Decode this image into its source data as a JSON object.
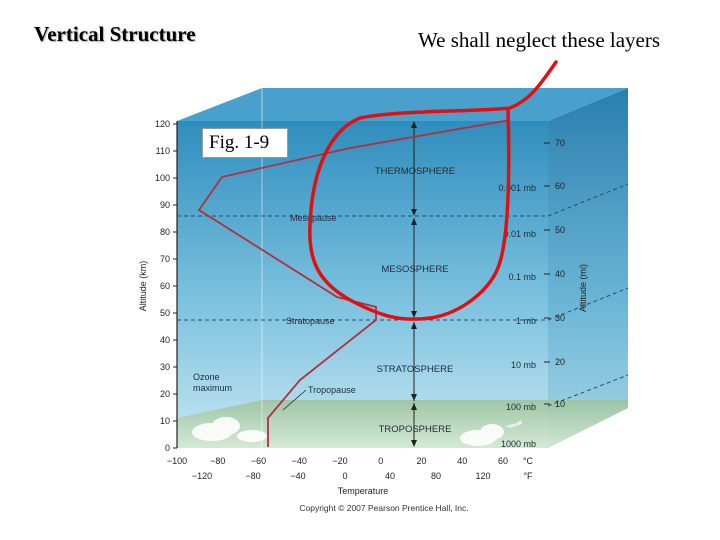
{
  "slide": {
    "title": "Vertical Structure",
    "note": "We shall neglect these layers",
    "figure_label": "Fig. 1-9"
  },
  "diagram": {
    "altitude_km_label": "Altitude (km)",
    "altitude_mi_label": "Altitude (mi)",
    "km_ticks": [
      "120",
      "110",
      "100",
      "90",
      "80",
      "70",
      "60",
      "50",
      "40",
      "30",
      "20",
      "10",
      "0"
    ],
    "mi_ticks": [
      "70",
      "60",
      "50",
      "40",
      "30",
      "20",
      "10"
    ],
    "pressure_labels": [
      "0.001 mb",
      "0.01 mb",
      "0.1 mb",
      "1 mb",
      "10 mb",
      "100 mb",
      "1000 mb"
    ],
    "layers": [
      "THERMOSPHERE",
      "MESOSPHERE",
      "STRATOSPHERE",
      "TROPOSPHERE"
    ],
    "boundaries": [
      "Mesopause",
      "Stratopause",
      "Tropopause"
    ],
    "ozone_label_1": "Ozone",
    "ozone_label_2": "maximum",
    "celsius_ticks": [
      "−100",
      "−80",
      "−60",
      "−40",
      "−20",
      "0",
      "20",
      "40",
      "60"
    ],
    "celsius_unit": "°C",
    "fahrenheit_ticks": [
      "−120",
      "−80",
      "−40",
      "0",
      "40",
      "80",
      "120"
    ],
    "fahrenheit_unit": "°F",
    "temperature_label": "Temperature",
    "copyright": "Copyright © 2007 Pearson Prentice Hall, Inc.",
    "colors": {
      "sky_top": "#2f8dbd",
      "sky_bottom": "#bfe4f1",
      "temperature_curve": "#b03040",
      "annotation": "#e01010",
      "ground": "#a8c9a0"
    }
  }
}
